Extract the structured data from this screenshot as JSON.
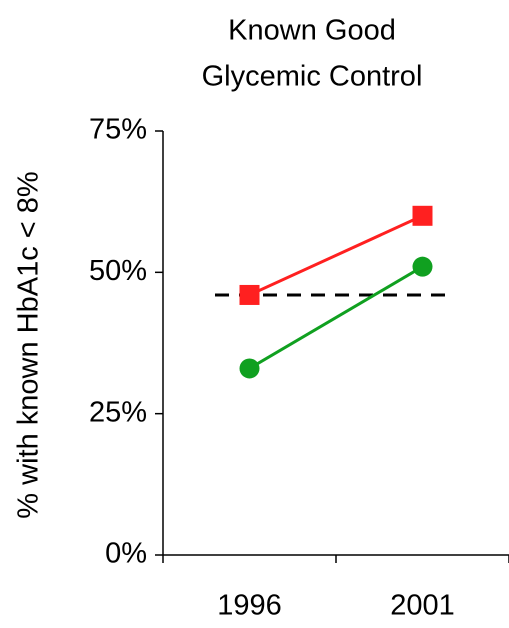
{
  "chart_data": {
    "type": "line",
    "title": [
      "Known Good",
      "Glycemic Control"
    ],
    "y_label": "% with known HbA1c < 8%",
    "categories": [
      "1996",
      "2001"
    ],
    "series": [
      {
        "color": "#ff2020",
        "marker": "square",
        "values": [
          46,
          60
        ]
      },
      {
        "color": "#10a020",
        "marker": "circle",
        "values": [
          33,
          51
        ]
      }
    ],
    "reference_line": {
      "value": 46,
      "color": "#000000",
      "dashed": true
    },
    "ylim": [
      0,
      75
    ],
    "yticks": [
      {
        "value": 0,
        "label": "0%"
      },
      {
        "value": 25,
        "label": "25%"
      },
      {
        "value": 50,
        "label": "50%"
      },
      {
        "value": 75,
        "label": "75%"
      }
    ],
    "grid": false
  }
}
